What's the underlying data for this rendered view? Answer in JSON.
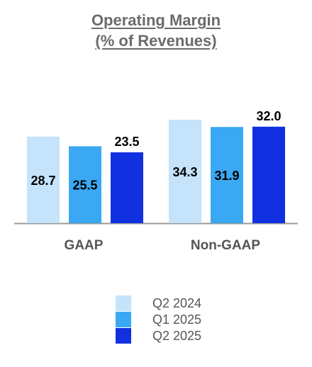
{
  "chart_data": {
    "type": "bar",
    "title": "Operating Margin",
    "subtitle": "(% of Revenues)",
    "categories": [
      "GAAP",
      "Non-GAAP"
    ],
    "series": [
      {
        "name": "Q2 2024",
        "color": "#c5e3fa",
        "values": [
          28.7,
          34.3
        ]
      },
      {
        "name": "Q1 2025",
        "color": "#3aa8f3",
        "values": [
          25.5,
          31.9
        ]
      },
      {
        "name": "Q2 2025",
        "color": "#1130e0",
        "values": [
          23.5,
          32.0
        ]
      }
    ],
    "ylim": [
      0,
      35
    ],
    "legend": "bottom",
    "grid": false
  }
}
